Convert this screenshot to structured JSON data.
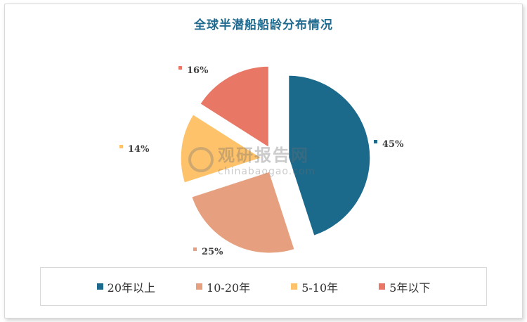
{
  "chart_data": {
    "type": "pie",
    "title": "全球半潜船船龄分布情况",
    "categories": [
      "20年以上",
      "10-20年",
      "5-10年",
      "5年以下"
    ],
    "values": [
      45,
      25,
      14,
      16
    ],
    "data_labels": [
      "45%",
      "25%",
      "14%",
      "16%"
    ],
    "colors": [
      "#1b6a8c",
      "#e6a07f",
      "#fec26b",
      "#e87765"
    ],
    "exploded": true,
    "legend_position": "bottom"
  },
  "watermark": {
    "main": "观研报告网",
    "sub": "chinabaogao.com"
  }
}
